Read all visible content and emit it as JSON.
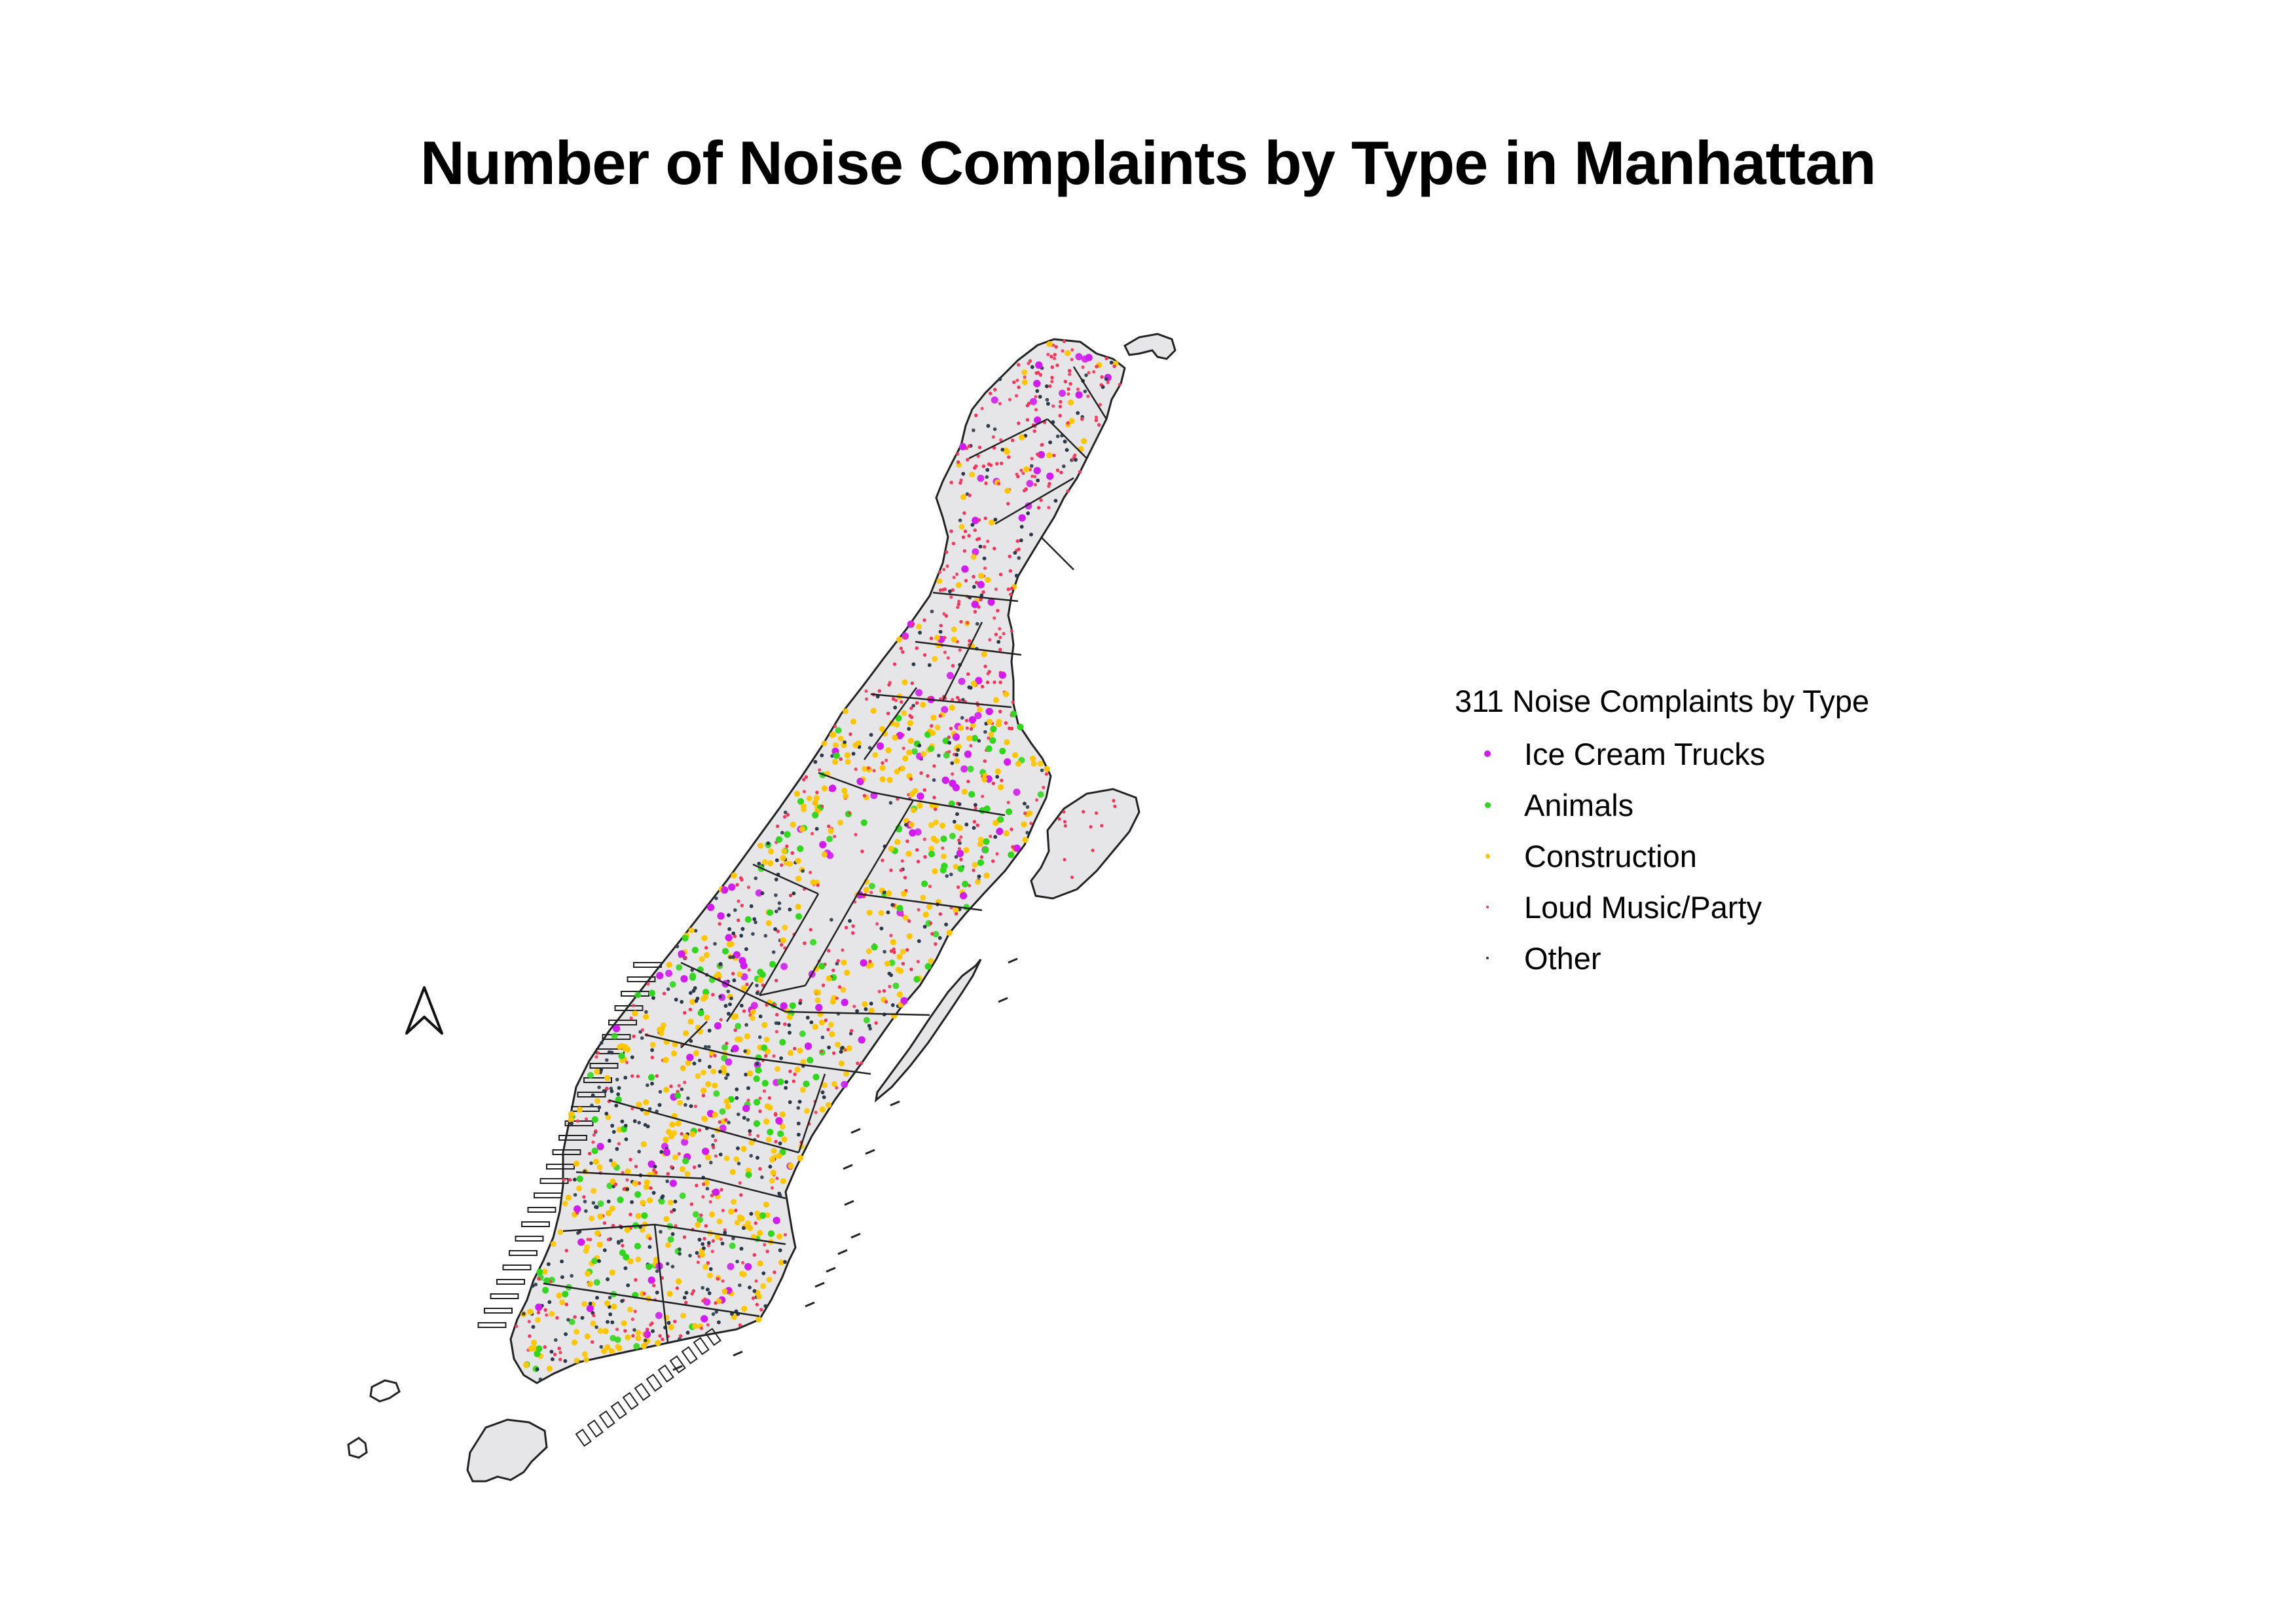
{
  "title": "Number of Noise Complaints by Type in Manhattan",
  "legend": {
    "title": "311 Noise Complaints by Type",
    "items": [
      {
        "label": "Ice Cream Trucks",
        "color": "#d21cf0",
        "key": "ice"
      },
      {
        "label": "Animals",
        "color": "#33d61f",
        "key": "animals"
      },
      {
        "label": "Construction",
        "color": "#ffc500",
        "key": "construction"
      },
      {
        "label": "Loud Music/Party",
        "color": "#f5365c",
        "key": "loud"
      },
      {
        "label": "Other",
        "color": "#2b3a4a",
        "key": "other"
      }
    ]
  },
  "map": {
    "land_fill": "#e6e6e8",
    "boundary_color": "#222222",
    "north_arrow_icon": "north-arrow-icon"
  }
}
